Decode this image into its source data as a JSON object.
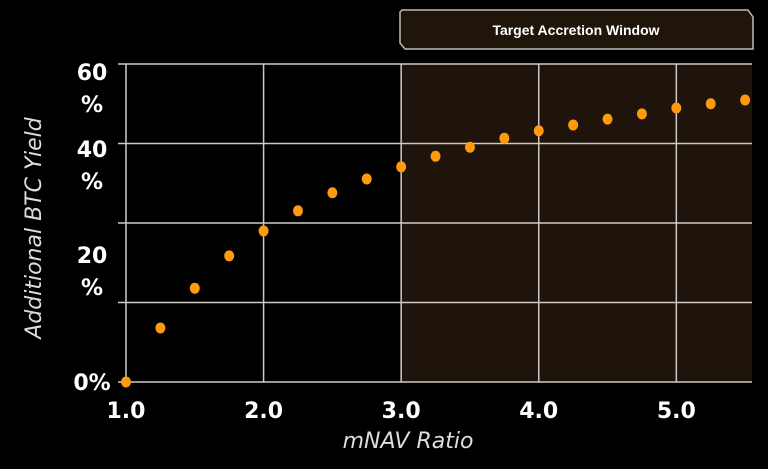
{
  "chart_data": {
    "type": "scatter",
    "title": "",
    "xlabel": "mNAV Ratio",
    "ylabel": "Additional BTC Yield",
    "xlim": [
      1.0,
      5.55
    ],
    "ylim": [
      0,
      60
    ],
    "grid": true,
    "x_ticks": [
      1.0,
      2.0,
      3.0,
      4.0,
      5.0
    ],
    "x_tick_labels": [
      "1.0",
      "2.0",
      "3.0",
      "4.0",
      "5.0"
    ],
    "y_gridlines": [
      0,
      15,
      30,
      45,
      60
    ],
    "y_tick_labels": [
      {
        "value": 0,
        "label": "0%"
      },
      {
        "value": 20,
        "label": "20 %"
      },
      {
        "value": 40,
        "label": "40 %"
      },
      {
        "value": 60,
        "label": "60 %"
      }
    ],
    "highlight_region": {
      "label": "Target Accretion Window",
      "x_start": 3.0,
      "color": "#1e140b"
    },
    "marker_color": "#ff9a0d",
    "x": [
      1.0,
      1.25,
      1.5,
      1.75,
      2.0,
      2.25,
      2.5,
      2.75,
      3.0,
      3.25,
      3.5,
      3.75,
      4.0,
      4.25,
      4.5,
      4.75,
      5.0,
      5.25,
      5.5
    ],
    "y": [
      0,
      10.2,
      17.7,
      23.8,
      28.5,
      32.3,
      35.7,
      38.3,
      40.6,
      42.6,
      44.3,
      46.0,
      47.4,
      48.5,
      49.6,
      50.6,
      51.7,
      52.5,
      53.2
    ]
  }
}
